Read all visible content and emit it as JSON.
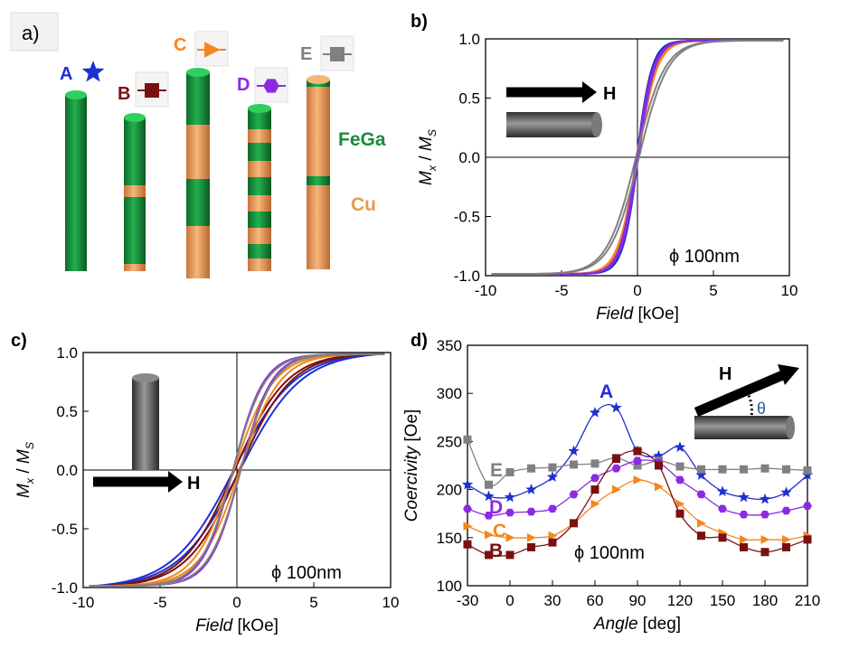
{
  "panels": {
    "a": {
      "label": "a)",
      "materials": {
        "fega": "FeGa",
        "cu": "Cu"
      },
      "samples": [
        {
          "letter": "A",
          "color": "#1f2fd0",
          "marker": "star"
        },
        {
          "letter": "B",
          "color": "#7a1010",
          "marker": "square"
        },
        {
          "letter": "C",
          "color": "#f5861f",
          "marker": "triangle"
        },
        {
          "letter": "D",
          "color": "#8a2be2",
          "marker": "hexagon"
        },
        {
          "letter": "E",
          "color": "#808080",
          "marker": "square"
        }
      ]
    },
    "b": {
      "label": "b)",
      "field_label": "H",
      "diameter": "ϕ 100nm"
    },
    "c": {
      "label": "c)",
      "field_label": "H",
      "diameter": "ϕ 100nm"
    },
    "d": {
      "label": "d)",
      "field_label": "H",
      "angle_symbol": "θ",
      "diameter": "ϕ 100nm"
    }
  },
  "colors": {
    "A": "#1f2fd0",
    "B": "#7a1010",
    "C": "#f5861f",
    "D": "#8a2be2",
    "E": "#808080",
    "fega": "#1b8a3a",
    "cu": "#e89a52"
  },
  "chart_data": [
    {
      "panel": "b",
      "type": "line",
      "xlabel_italic": "Field",
      "xlabel_unit": "[kOe]",
      "ylabel": "Mx / Ms",
      "xlim": [
        -10,
        10
      ],
      "ylim": [
        -1.0,
        1.0
      ],
      "xticks": [
        -10,
        -5,
        0,
        5,
        10
      ],
      "yticks": [
        -1.0,
        -0.5,
        0.0,
        0.5,
        1.0
      ],
      "ytick_labels": [
        "-1.0",
        "-0.5",
        "0.0",
        "0.5",
        "1.0"
      ],
      "series": [
        {
          "key": "A",
          "hc": 0.05,
          "w": 1.0,
          "hs": 4.0
        },
        {
          "key": "B",
          "hc": 0.05,
          "w": 1.2,
          "hs": 4.6
        },
        {
          "key": "C",
          "hc": 0.05,
          "w": 1.25,
          "hs": 5.0
        },
        {
          "key": "D",
          "hc": 0.05,
          "w": 1.1,
          "hs": 4.6
        },
        {
          "key": "E",
          "hc": 0.1,
          "w": 1.9,
          "hs": 7.0
        }
      ]
    },
    {
      "panel": "c",
      "type": "line",
      "xlabel_italic": "Field",
      "xlabel_unit": "[kOe]",
      "ylabel": "Mx / Ms",
      "xlim": [
        -10,
        10
      ],
      "ylim": [
        -1.0,
        1.0
      ],
      "xticks": [
        -10,
        -5,
        0,
        5,
        10
      ],
      "yticks": [
        -1.0,
        -0.5,
        0.0,
        0.5,
        1.0
      ],
      "ytick_labels": [
        "-1.0",
        "-0.5",
        "0.0",
        "0.5",
        "1.0"
      ],
      "series": [
        {
          "key": "A",
          "hc": 0.2,
          "w": 4.0,
          "hs": 9.0
        },
        {
          "key": "B",
          "hc": 0.15,
          "w": 3.4,
          "hs": 8.5
        },
        {
          "key": "C",
          "hc": 0.2,
          "w": 2.6,
          "hs": 8.0
        },
        {
          "key": "D",
          "hc": 0.25,
          "w": 2.0,
          "hs": 7.0
        },
        {
          "key": "E",
          "hc": 0.25,
          "w": 2.1,
          "hs": 7.0
        }
      ]
    },
    {
      "panel": "d",
      "type": "line",
      "xlabel_italic": "Angle",
      "xlabel_unit": "[deg]",
      "ylabel_italic": "Coercivity",
      "ylabel_unit": "[Oe]",
      "xlim": [
        -30,
        210
      ],
      "ylim": [
        100,
        350
      ],
      "xticks": [
        -30,
        0,
        30,
        60,
        90,
        120,
        150,
        180,
        210
      ],
      "yticks": [
        100,
        150,
        200,
        250,
        300,
        350
      ],
      "x": [
        -30,
        -15,
        0,
        15,
        30,
        45,
        60,
        75,
        90,
        105,
        120,
        135,
        150,
        165,
        180,
        195,
        210
      ],
      "series": [
        {
          "key": "A",
          "name": "A",
          "marker": "star",
          "values": [
            205,
            193,
            192,
            200,
            213,
            240,
            280,
            285,
            240,
            235,
            244,
            215,
            198,
            192,
            190,
            197,
            215
          ]
        },
        {
          "key": "E",
          "name": "E",
          "marker": "square",
          "values": [
            252,
            205,
            218,
            222,
            223,
            226,
            227,
            233,
            225,
            230,
            224,
            221,
            221,
            221,
            222,
            221,
            220
          ]
        },
        {
          "key": "D",
          "name": "D",
          "marker": "hexagon",
          "values": [
            180,
            173,
            176,
            177,
            180,
            195,
            212,
            222,
            230,
            228,
            210,
            195,
            180,
            174,
            174,
            178,
            183
          ]
        },
        {
          "key": "C",
          "name": "C",
          "marker": "triangle",
          "values": [
            162,
            153,
            150,
            150,
            152,
            165,
            185,
            200,
            210,
            203,
            185,
            165,
            155,
            148,
            148,
            148,
            152
          ]
        },
        {
          "key": "B",
          "name": "B",
          "marker": "square",
          "values": [
            143,
            132,
            132,
            140,
            145,
            165,
            200,
            232,
            240,
            225,
            175,
            152,
            150,
            140,
            135,
            140,
            148
          ]
        }
      ]
    }
  ]
}
